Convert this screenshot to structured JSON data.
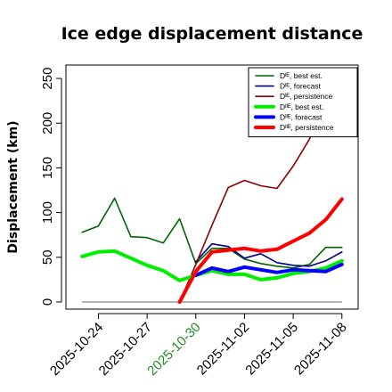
{
  "chart_data": {
    "type": "line",
    "title": "Ice edge displacement distance",
    "xlabel": "",
    "ylabel": "Displacement (km)",
    "ylim": [
      -8,
      265
    ],
    "xlim": [
      "2025-10-22",
      "2025-11-09"
    ],
    "yticks": [
      0,
      50,
      100,
      150,
      200,
      250
    ],
    "xticks": [
      "2025-10-24",
      "2025-10-27",
      "2025-10-30",
      "2025-11-02",
      "2025-11-05",
      "2025-11-08"
    ],
    "highlight_xtick": "2025-10-30",
    "highlight_color": "#228B22",
    "reference_line": 0,
    "grid": false,
    "legend_position": "top-right",
    "series": [
      {
        "name": "Dᴵᴱ, best est.",
        "color": "#006400",
        "width": "thin",
        "x": [
          "2025-10-23",
          "2025-10-24",
          "2025-10-25",
          "2025-10-26",
          "2025-10-27",
          "2025-10-28",
          "2025-10-29",
          "2025-10-30",
          "2025-10-31",
          "2025-11-01",
          "2025-11-02",
          "2025-11-03",
          "2025-11-04",
          "2025-11-05",
          "2025-11-06",
          "2025-11-07",
          "2025-11-08"
        ],
        "y": [
          78,
          85,
          116,
          73,
          72,
          66,
          93,
          43,
          60,
          60,
          48,
          43,
          40,
          38,
          42,
          61,
          61
        ]
      },
      {
        "name": "Dᴵᴱ, forecast",
        "color": "#00008B",
        "width": "thin",
        "x": [
          "2025-10-30",
          "2025-10-31",
          "2025-11-01",
          "2025-11-02",
          "2025-11-03",
          "2025-11-04",
          "2025-11-05",
          "2025-11-06",
          "2025-11-07",
          "2025-11-08"
        ],
        "y": [
          45,
          65,
          62,
          49,
          54,
          44,
          41,
          40,
          46,
          56
        ]
      },
      {
        "name": "Dᴵᴱ, persistence",
        "color": "#8B0000",
        "width": "thin",
        "x": [
          "2025-10-29",
          "2025-10-30",
          "2025-10-31",
          "2025-11-01",
          "2025-11-02",
          "2025-11-03",
          "2025-11-04",
          "2025-11-05",
          "2025-11-06",
          "2025-11-07",
          "2025-11-08"
        ],
        "y": [
          0,
          42,
          86,
          128,
          136,
          130,
          127,
          152,
          182,
          228,
          240
        ]
      },
      {
        "name": "Dᴵᴵᴱ, best est.",
        "color": "#00EE00",
        "width": "thick",
        "x": [
          "2025-10-23",
          "2025-10-24",
          "2025-10-25",
          "2025-10-26",
          "2025-10-27",
          "2025-10-28",
          "2025-10-29",
          "2025-10-30",
          "2025-10-31",
          "2025-11-01",
          "2025-11-02",
          "2025-11-03",
          "2025-11-04",
          "2025-11-05",
          "2025-11-06",
          "2025-11-07",
          "2025-11-08"
        ],
        "y": [
          51,
          56,
          57,
          49,
          41,
          35,
          24,
          30,
          35,
          31,
          31,
          25,
          27,
          32,
          34,
          38,
          46
        ]
      },
      {
        "name": "Dᴵᴵᴱ, forecast",
        "color": "#0000FF",
        "width": "thick",
        "x": [
          "2025-10-30",
          "2025-10-31",
          "2025-11-01",
          "2025-11-02",
          "2025-11-03",
          "2025-11-04",
          "2025-11-05",
          "2025-11-06",
          "2025-11-07",
          "2025-11-08"
        ],
        "y": [
          30,
          38,
          34,
          39,
          36,
          33,
          36,
          35,
          34,
          42
        ]
      },
      {
        "name": "Dᴵᴵᴱ, persistence",
        "color": "#FF0000",
        "width": "thick",
        "x": [
          "2025-10-29",
          "2025-10-30",
          "2025-10-31",
          "2025-11-01",
          "2025-11-02",
          "2025-11-03",
          "2025-11-04",
          "2025-11-05",
          "2025-11-06",
          "2025-11-07",
          "2025-11-08"
        ],
        "y": [
          0,
          34,
          56,
          58,
          60,
          57,
          59,
          68,
          77,
          92,
          115
        ]
      }
    ]
  }
}
